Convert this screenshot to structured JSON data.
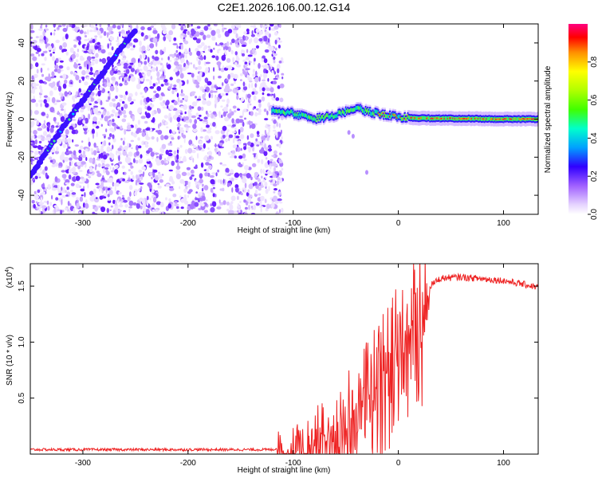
{
  "title": "C2E1.2026.106.00.12.G14",
  "chart_data": [
    {
      "type": "heatmap",
      "name": "spectrogram",
      "xlabel": "Height of straight line (km)",
      "ylabel": "Frequency (Hz)",
      "xlim": [
        -350,
        133
      ],
      "ylim": [
        -50,
        50
      ],
      "xticks": [
        -300,
        -200,
        -100,
        0,
        100
      ],
      "yticks": [
        -40,
        -20,
        0,
        20,
        40
      ],
      "noise_region_x": [
        -350,
        -110
      ],
      "noise_region_y": [
        -50,
        50
      ],
      "doppler_trace": {
        "x": [
          -350,
          -320,
          -300,
          -280,
          -260,
          -250
        ],
        "y": [
          -30,
          -5,
          10,
          25,
          40,
          47
        ]
      },
      "carrier_band": {
        "x": [
          -120,
          -100,
          -80,
          -60,
          -40,
          -30,
          -20,
          -10,
          0,
          20,
          60,
          100,
          133
        ],
        "y": [
          5,
          3,
          0,
          2,
          6,
          4,
          3,
          2,
          1,
          0.5,
          0.3,
          0,
          0
        ]
      },
      "colorbar": {
        "label": "Normalized spectral amplitude",
        "ticks": [
          "0.0",
          "0.2",
          "0.4",
          "0.6",
          "0.8"
        ],
        "range": [
          0,
          1
        ]
      }
    },
    {
      "type": "line",
      "name": "snr",
      "xlabel": "Height of straight line (km)",
      "ylabel": "SNR (10 * v/v)",
      "exponent_label": "(x10",
      "exponent_power": "4",
      "exponent_close": ")",
      "xlim": [
        -350,
        133
      ],
      "ylim": [
        0,
        1.7
      ],
      "xticks": [
        -300,
        -200,
        -100,
        0,
        100
      ],
      "yticks": [
        "0.5",
        "1.0",
        "1.5"
      ],
      "color": "#ee2222",
      "envelope": {
        "x": [
          -350,
          -200,
          -120,
          -100,
          -80,
          -60,
          -40,
          -20,
          -10,
          0,
          10,
          20,
          30,
          40,
          60,
          100,
          133
        ],
        "y": [
          0.04,
          0.04,
          0.04,
          0.08,
          0.2,
          0.3,
          0.5,
          0.8,
          0.9,
          1.25,
          1.2,
          1.35,
          1.5,
          1.57,
          1.58,
          1.55,
          1.49
        ]
      }
    }
  ]
}
